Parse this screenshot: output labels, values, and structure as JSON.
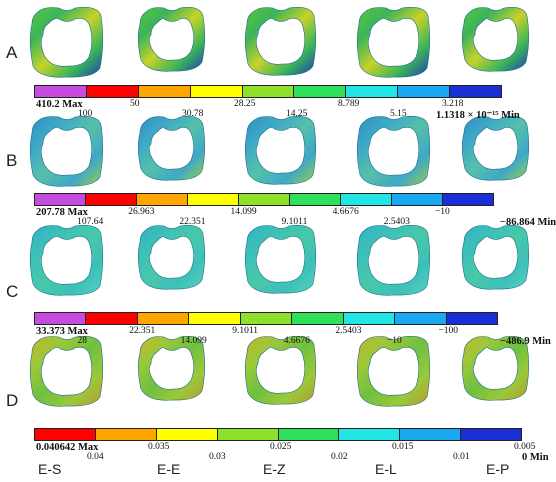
{
  "rows": [
    {
      "letter": "A",
      "max_label": "410.2 Max",
      "min_label": "1.1318 × 10⁻¹⁵ Min",
      "ticks": [
        "100",
        "50",
        "30.78",
        "28.25",
        "14.25",
        "8.789",
        "5.15",
        "3.218"
      ],
      "colors": [
        "#c64bdf",
        "#ff0000",
        "#ffa500",
        "#ffff00",
        "#8fe02a",
        "#2ee05a",
        "#22e6e6",
        "#1aa8f0",
        "#1a2fd6"
      ],
      "ring_palette": [
        "#3bb45a",
        "#5ac83a",
        "#c8d22a",
        "#1a3ab5"
      ]
    },
    {
      "letter": "B",
      "max_label": "207.78 Max",
      "min_label": "−86.864 Min",
      "ticks": [
        "107.64",
        "26.963",
        "22.351",
        "14.099",
        "9.1011",
        "4.6676",
        "2.5403",
        "−10"
      ],
      "colors": [
        "#c64bdf",
        "#ff0000",
        "#ffa500",
        "#ffff00",
        "#8fe02a",
        "#2ee05a",
        "#22e6e6",
        "#1aa8f0",
        "#1a2fd6"
      ],
      "ring_palette": [
        "#3fa8c8",
        "#2e8fc0",
        "#55c0a8",
        "#9ad040"
      ]
    },
    {
      "letter": "C",
      "max_label": "33.373 Max",
      "min_label": "−486.9 Min",
      "ticks": [
        "28",
        "22.351",
        "14.099",
        "9.1011",
        "4.6676",
        "2.5403",
        "−10",
        "−100"
      ],
      "colors": [
        "#c64bdf",
        "#ff0000",
        "#ffa500",
        "#ffff00",
        "#8fe02a",
        "#2ee05a",
        "#22e6e6",
        "#1aa8f0",
        "#1a2fd6"
      ],
      "ring_palette": [
        "#3cc0b8",
        "#30b0c8",
        "#48c8a8",
        "#58d0c0"
      ]
    },
    {
      "letter": "D",
      "max_label": "0.040642 Max",
      "min_label": "0 Min",
      "ticks": [
        "0.04",
        "0.035",
        "0.03",
        "0.025",
        "0.02",
        "0.015",
        "0.01",
        "0.005"
      ],
      "colors": [
        "#ff0000",
        "#ffa500",
        "#ffff00",
        "#8fe02a",
        "#2ee05a",
        "#22e6e6",
        "#1aa8f0",
        "#1a2fd6"
      ],
      "ring_palette": [
        "#9ac83a",
        "#c8b42a",
        "#70c040",
        "#b89a30"
      ]
    }
  ],
  "columns": [
    "E-S",
    "E-E",
    "E-Z",
    "E-L",
    "E-P"
  ]
}
